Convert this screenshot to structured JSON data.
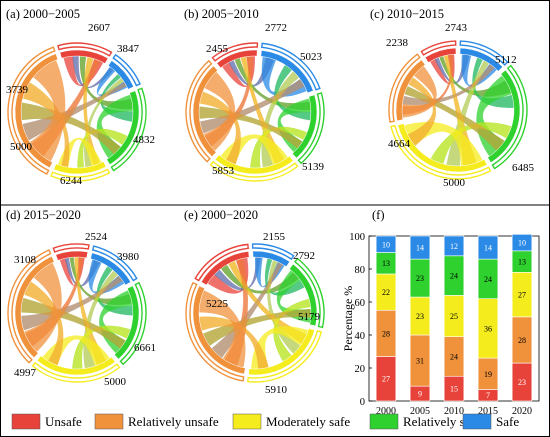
{
  "colors": {
    "unsafe": "#e8433a",
    "relatively_unsafe": "#f0923c",
    "moderately_safe": "#f5ec1e",
    "relatively_safe": "#2ed12e",
    "safe": "#2a8ae6"
  },
  "legend": {
    "items": [
      {
        "label": "Unsafe",
        "color": "#e8433a"
      },
      {
        "label": "Relatively unsafe",
        "color": "#f0923c"
      },
      {
        "label": "Moderately safe",
        "color": "#f5ec1e"
      },
      {
        "label": "Relatively safe",
        "color": "#2ed12e"
      },
      {
        "label": "Safe",
        "color": "#2a8ae6"
      }
    ]
  },
  "chart_data": [
    {
      "type": "chord",
      "title": "(a) 2000−2005",
      "category_labels": [
        "3739",
        "2607",
        "3847",
        "4832",
        "6244",
        "5000"
      ]
    },
    {
      "type": "chord",
      "title": "(b) 2005−2010",
      "category_labels": [
        "2455",
        "2772",
        "5023",
        "5139",
        "5853"
      ]
    },
    {
      "type": "chord",
      "title": "(c) 2010−2015",
      "category_labels": [
        "2238",
        "2743",
        "5112",
        "6485",
        "5000",
        "4664"
      ]
    },
    {
      "type": "chord",
      "title": "(d) 2015−2020",
      "category_labels": [
        "3108",
        "2524",
        "3980",
        "6661",
        "5000",
        "4997"
      ]
    },
    {
      "type": "chord",
      "title": "(e) 2000−2020",
      "category_labels": [
        "5225",
        "2155",
        "2792",
        "5179",
        "5910"
      ]
    },
    {
      "type": "bar",
      "title": "(f)",
      "ylabel": "Percentage %",
      "ylim": [
        0,
        100
      ],
      "yticks": [
        0,
        20,
        40,
        60,
        80,
        100
      ],
      "categories": [
        "2000",
        "2005",
        "2010",
        "2015",
        "2020"
      ],
      "series": [
        {
          "name": "Unsafe",
          "values": [
            27,
            9,
            15,
            7,
            23
          ]
        },
        {
          "name": "Relatively unsafe",
          "values": [
            28,
            31,
            24,
            19,
            28
          ]
        },
        {
          "name": "Moderately safe",
          "values": [
            22,
            23,
            25,
            36,
            27
          ]
        },
        {
          "name": "Relatively safe",
          "values": [
            13,
            23,
            24,
            24,
            13
          ]
        },
        {
          "name": "Safe",
          "values": [
            10,
            14,
            12,
            14,
            10
          ]
        }
      ]
    }
  ]
}
